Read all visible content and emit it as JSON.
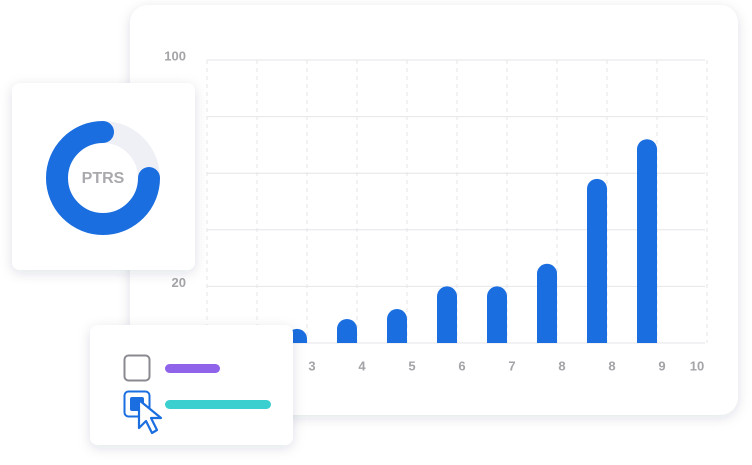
{
  "chart_data": {
    "type": "bar",
    "categories": [
      "3",
      "4",
      "5",
      "6",
      "7",
      "8",
      "8",
      "9",
      "10"
    ],
    "values": [
      5,
      8.5,
      12,
      20,
      20,
      28,
      58,
      72,
      null
    ],
    "color": "#1a6ee0",
    "ylim": [
      0,
      100
    ],
    "yticks": [
      20,
      100
    ],
    "ygrid": [
      0,
      20,
      40,
      60,
      80,
      100
    ],
    "grid": true
  },
  "donut": {
    "label": "PTRS",
    "value": 75,
    "color": "#1a6ee0"
  }
}
